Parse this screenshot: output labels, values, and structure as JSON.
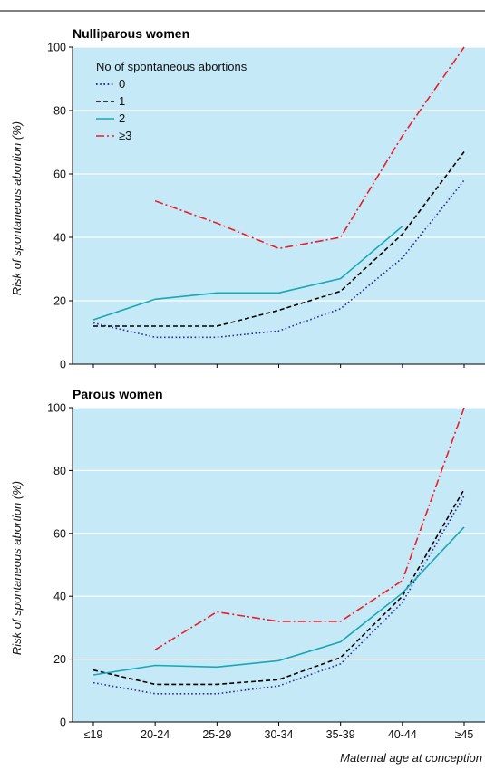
{
  "chart_data": [
    {
      "type": "line",
      "title": "Nulliparous women",
      "ylabel": "Risk of spontaneous abortion (%)",
      "xlabel": "",
      "ylim": [
        0,
        100
      ],
      "yticks": [
        0,
        20,
        40,
        60,
        80,
        100
      ],
      "grid": true,
      "categories": [
        "≤19",
        "20-24",
        "25-29",
        "30-34",
        "35-39",
        "40-44",
        "≥45"
      ],
      "legend": {
        "title": "No of spontaneous abortions",
        "placement": "top-left",
        "entries": [
          "0",
          "1",
          "2",
          "≥3"
        ]
      },
      "series": [
        {
          "name": "0",
          "color": "#2a2f9e",
          "dash": "dotted",
          "values": [
            13,
            8.5,
            8.5,
            10.5,
            17.5,
            33.5,
            58
          ]
        },
        {
          "name": "1",
          "color": "#000000",
          "dash": "dashed",
          "values": [
            12,
            12,
            12,
            17,
            23,
            41,
            67
          ]
        },
        {
          "name": "2",
          "color": "#18a8b4",
          "dash": "solid",
          "values": [
            14,
            20.5,
            22.5,
            22.5,
            27,
            43.5,
            null
          ]
        },
        {
          "name": "≥3",
          "color": "#e8202a",
          "dash": "dashdot",
          "values": [
            null,
            51.5,
            44.5,
            36.5,
            40,
            72,
            100
          ]
        }
      ]
    },
    {
      "type": "line",
      "title": "Parous women",
      "ylabel": "Risk of spontaneous abortion (%)",
      "xlabel": "Maternal age at conception",
      "ylim": [
        0,
        100
      ],
      "yticks": [
        0,
        20,
        40,
        60,
        80,
        100
      ],
      "grid": true,
      "categories": [
        "≤19",
        "20-24",
        "25-29",
        "30-34",
        "35-39",
        "40-44",
        "≥45"
      ],
      "series": [
        {
          "name": "0",
          "color": "#2a2f9e",
          "dash": "dotted",
          "values": [
            12.5,
            9,
            9,
            11.5,
            18.5,
            38,
            72
          ]
        },
        {
          "name": "1",
          "color": "#000000",
          "dash": "dashed",
          "values": [
            16.5,
            12,
            12,
            13.5,
            20.5,
            40,
            74
          ]
        },
        {
          "name": "2",
          "color": "#18a8b4",
          "dash": "solid",
          "values": [
            15,
            18,
            17.5,
            19.5,
            25.5,
            41,
            62
          ]
        },
        {
          "name": "≥3",
          "color": "#e8202a",
          "dash": "dashdot",
          "values": [
            null,
            23,
            35,
            32,
            32,
            45,
            100
          ]
        }
      ]
    }
  ]
}
